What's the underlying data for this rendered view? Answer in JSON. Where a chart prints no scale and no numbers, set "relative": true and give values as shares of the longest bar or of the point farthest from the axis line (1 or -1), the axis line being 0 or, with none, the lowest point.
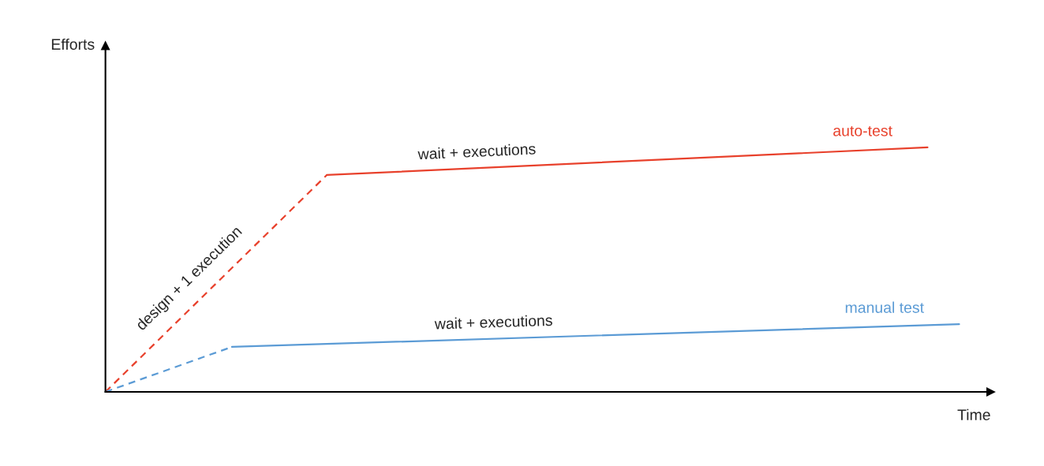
{
  "chart_data": {
    "type": "line",
    "relative": true,
    "xlabel": "Time",
    "categories": [
      null,
      null,
      null,
      null,
      null,
      null,
      null,
      null,
      null,
      null,
      null,
      null,
      null,
      null,
      null,
      null,
      null,
      null,
      null,
      null,
      null,
      null,
      null,
      null,
      null,
      null,
      null,
      null,
      null
    ],
    "series": [
      {
        "color": "#e8412c",
        "line_style": "dashed",
        "values": [
          0,
          null,
          null,
          null,
          null,
          null,
          null,
          0.887,
          null,
          null,
          null,
          null,
          null,
          null,
          null,
          null,
          null,
          null,
          null,
          null,
          null,
          null,
          null,
          null,
          null,
          null,
          null,
          null,
          null
        ]
      },
      {
        "name": "auto-test",
        "color": "#e8412c",
        "line_style": "solid",
        "values": [
          null,
          null,
          null,
          null,
          null,
          null,
          null,
          0.887,
          null,
          null,
          null,
          null,
          null,
          null,
          null,
          null,
          null,
          null,
          null,
          null,
          null,
          null,
          null,
          null,
          null,
          null,
          1,
          null,
          null
        ]
      },
      {
        "color": "#5b9bd5",
        "line_style": "dashed",
        "values": [
          0,
          null,
          null,
          null,
          0.184,
          null,
          null,
          null,
          null,
          null,
          null,
          null,
          null,
          null,
          null,
          null,
          null,
          null,
          null,
          null,
          null,
          null,
          null,
          null,
          null,
          null,
          null,
          null,
          null
        ]
      },
      {
        "name": "manual test",
        "color": "#5b9bd5",
        "line_style": "solid",
        "values": [
          null,
          null,
          null,
          null,
          0.184,
          null,
          null,
          null,
          null,
          null,
          null,
          null,
          null,
          null,
          null,
          null,
          null,
          null,
          null,
          null,
          null,
          null,
          null,
          null,
          null,
          null,
          null,
          0.277,
          null
        ]
      }
    ],
    "annotations": [
      "design + 1 execution",
      "wait + executions",
      "wait + executions",
      "Efforts"
    ]
  }
}
